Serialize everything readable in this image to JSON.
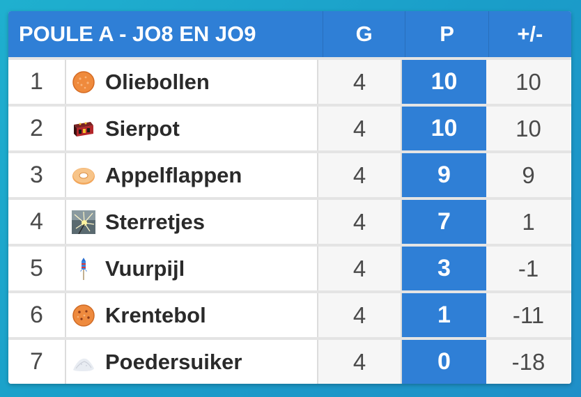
{
  "table": {
    "title": "POULE A - JO8 EN JO9",
    "col_g": "G",
    "col_p": "P",
    "col_diff": "+/-"
  },
  "rows": [
    {
      "rank": "1",
      "team": "Oliebollen",
      "icon": "oliebol-icon",
      "g": "4",
      "p": "10",
      "diff": "10"
    },
    {
      "rank": "2",
      "team": "Sierpot",
      "icon": "firework-box-icon",
      "g": "4",
      "p": "10",
      "diff": "10"
    },
    {
      "rank": "3",
      "team": "Appelflappen",
      "icon": "ring-pastry-icon",
      "g": "4",
      "p": "9",
      "diff": "9"
    },
    {
      "rank": "4",
      "team": "Sterretjes",
      "icon": "sparkler-icon",
      "g": "4",
      "p": "7",
      "diff": "1"
    },
    {
      "rank": "5",
      "team": "Vuurpijl",
      "icon": "rocket-icon",
      "g": "4",
      "p": "3",
      "diff": "-1"
    },
    {
      "rank": "6",
      "team": "Krentebol",
      "icon": "currant-bun-icon",
      "g": "4",
      "p": "1",
      "diff": "-11"
    },
    {
      "rank": "7",
      "team": "Poedersuiker",
      "icon": "powdered-sugar-icon",
      "g": "4",
      "p": "0",
      "diff": "-18"
    }
  ],
  "colors": {
    "accent": "#2f7fd6",
    "background": "#1fa6cc"
  }
}
